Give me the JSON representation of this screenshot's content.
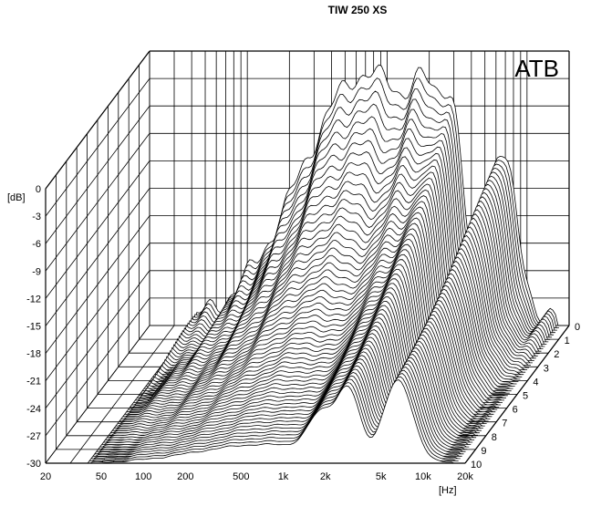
{
  "chart_data": {
    "type": "waterfall",
    "title": "TIW 250 XS",
    "brand": "ATB",
    "ylabel": "[dB]",
    "xlabel": "[Hz]",
    "y_ticks": [
      "0",
      "-3",
      "-6",
      "-9",
      "-12",
      "-15",
      "-18",
      "-21",
      "-24",
      "-27",
      "-30"
    ],
    "ylim": [
      -30,
      0
    ],
    "x_ticks": [
      "20",
      "50",
      "100",
      "200",
      "500",
      "1k",
      "2k",
      "5k",
      "10k",
      "20k"
    ],
    "xlim": [
      20,
      20000
    ],
    "x_scale": "log",
    "z_ticks": [
      "0",
      "1",
      "2",
      "3",
      "4",
      "5",
      "6",
      "7",
      "8",
      "9",
      "10"
    ],
    "zlim": [
      0,
      10
    ]
  }
}
